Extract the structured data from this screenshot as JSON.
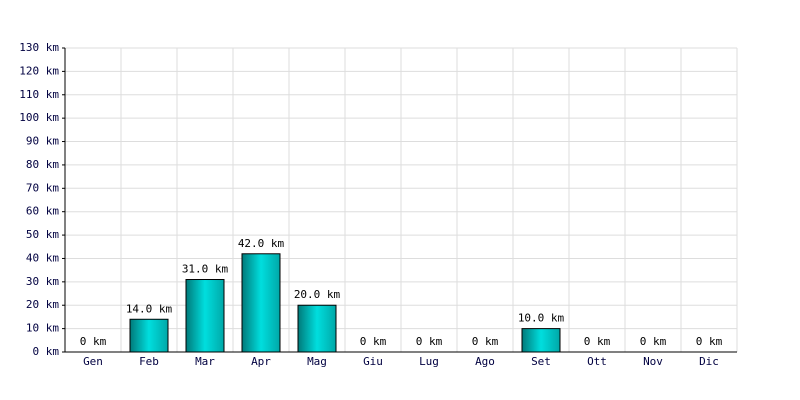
{
  "chart_data": {
    "type": "bar",
    "categories": [
      "Gen",
      "Feb",
      "Mar",
      "Apr",
      "Mag",
      "Giu",
      "Lug",
      "Ago",
      "Set",
      "Ott",
      "Nov",
      "Dic"
    ],
    "values": [
      0,
      14,
      31,
      42,
      20,
      0,
      0,
      0,
      10,
      0,
      0,
      0
    ],
    "value_labels": [
      "0 km",
      "14.0 km",
      "31.0 km",
      "42.0 km",
      "20.0 km",
      "0 km",
      "0 km",
      "0 km",
      "10.0 km",
      "0 km",
      "0 km",
      "0 km"
    ],
    "color": "#00cccc",
    "ylim": [
      0,
      130
    ],
    "yticks": [
      {
        "value": 0,
        "label": "0 km"
      },
      {
        "value": 10,
        "label": "10 km"
      },
      {
        "value": 20,
        "label": "20 km"
      },
      {
        "value": 30,
        "label": "30 km"
      },
      {
        "value": 40,
        "label": "40 km"
      },
      {
        "value": 50,
        "label": "50 km"
      },
      {
        "value": 60,
        "label": "60 km"
      },
      {
        "value": 70,
        "label": "70 km"
      },
      {
        "value": 80,
        "label": "80 km"
      },
      {
        "value": 90,
        "label": "90 km"
      },
      {
        "value": 100,
        "label": "100 km"
      },
      {
        "value": 110,
        "label": "110 km"
      },
      {
        "value": 120,
        "label": "120 km"
      },
      {
        "value": 130,
        "label": "130 km"
      }
    ],
    "grid": true
  }
}
